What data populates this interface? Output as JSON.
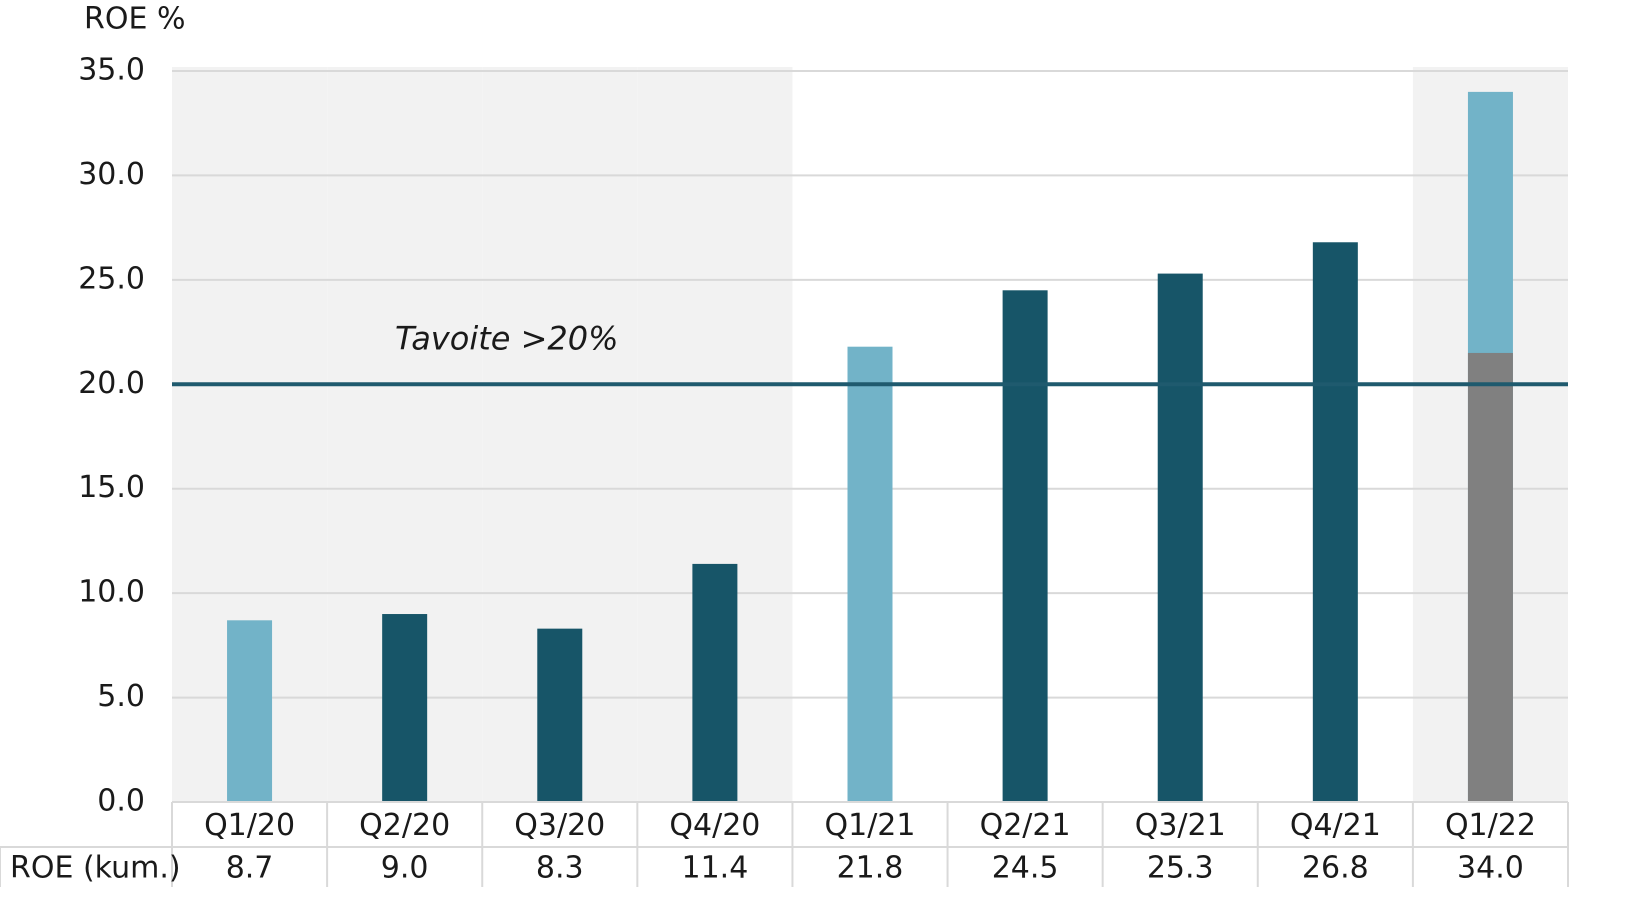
{
  "chart_data": {
    "type": "bar",
    "y_axis_label": "ROE %",
    "categories": [
      "Q1/20",
      "Q2/20",
      "Q3/20",
      "Q4/20",
      "Q1/21",
      "Q2/21",
      "Q3/21",
      "Q4/21",
      "Q1/22"
    ],
    "series": [
      {
        "values": [
          8.7,
          9.0,
          8.3,
          11.4,
          21.8,
          24.5,
          25.3,
          26.8,
          34.0
        ],
        "colors": [
          "#72b3c8",
          "#175568",
          "#175568",
          "#175568",
          "#72b3c8",
          "#175568",
          "#175568",
          "#175568",
          "#72b3c8"
        ]
      },
      {
        "values": [
          null,
          null,
          null,
          null,
          null,
          null,
          null,
          null,
          21.5
        ],
        "color": "#808080"
      }
    ],
    "ylim": [
      0,
      35
    ],
    "yticks": [
      {
        "value": 0,
        "label": "0.0"
      },
      {
        "value": 5,
        "label": "5.0"
      },
      {
        "value": 10,
        "label": "10.0"
      },
      {
        "value": 15,
        "label": "15.0"
      },
      {
        "value": 20,
        "label": "20.0"
      },
      {
        "value": 25,
        "label": "25.0"
      },
      {
        "value": 30,
        "label": "30.0"
      },
      {
        "value": 35,
        "label": "35.0"
      }
    ],
    "grid": true,
    "shaded_categories": [
      0,
      1,
      2,
      3,
      8
    ],
    "target": {
      "value": 20,
      "label": "Tavoite >20%",
      "color": "#1f5a6e"
    },
    "table": {
      "row_label": "ROE (kum.)",
      "values": [
        8.7,
        9.0,
        8.3,
        11.4,
        21.8,
        24.5,
        25.3,
        26.8,
        34.0
      ],
      "value_labels": [
        "8.7",
        "9.0",
        "8.3",
        "11.4",
        "21.8",
        "24.5",
        "25.3",
        "26.8",
        "34.0"
      ]
    }
  }
}
